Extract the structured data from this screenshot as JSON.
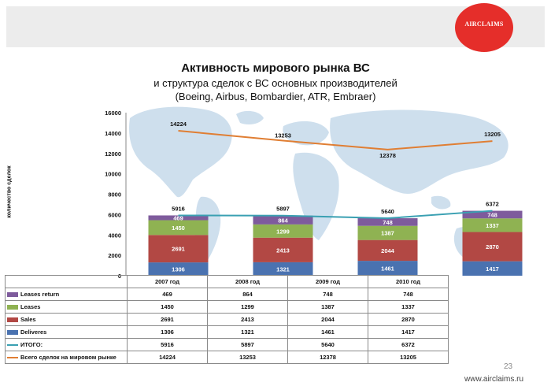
{
  "header": {
    "logo_text": "AIRCLAIMS"
  },
  "title": "Активность мирового рынка ВС",
  "subtitle_line1": "и структура сделок с ВС основных производителей",
  "subtitle_line2": "(Boeing, Airbus, Bombardier, ATR, Embraer)",
  "footer": {
    "page_number": "23",
    "site": "www.airclaims.ru"
  },
  "colors": {
    "leases_return": "#7e5b9c",
    "leases": "#8fb252",
    "sales": "#b24844",
    "deliveres": "#4a72b0",
    "itogo": "#3aa0b2",
    "total_market": "#e07e33"
  },
  "chart_data": {
    "type": "bar",
    "stacked": true,
    "categories": [
      "2007 год",
      "2008 год",
      "2009 год",
      "2010 год"
    ],
    "ylabel": "количество сделок",
    "ylim": [
      0,
      16000
    ],
    "yticks": [
      "0",
      "2000",
      "4000",
      "6000",
      "8000",
      "10000",
      "12000",
      "14000",
      "16000"
    ],
    "series": [
      {
        "name": "Deliveres",
        "values": [
          1306,
          1321,
          1461,
          1417
        ]
      },
      {
        "name": "Sales",
        "values": [
          2691,
          2413,
          2044,
          2870
        ]
      },
      {
        "name": "Leases",
        "values": [
          1450,
          1299,
          1387,
          1337
        ]
      },
      {
        "name": "Leases return",
        "values": [
          469,
          864,
          748,
          748
        ]
      }
    ],
    "lines": [
      {
        "name": "ИТОГО:",
        "values": [
          5916,
          5897,
          5640,
          6372
        ]
      },
      {
        "name": "Всего сделок на мировом рынке",
        "values": [
          14224,
          13253,
          12378,
          13205
        ]
      }
    ]
  }
}
